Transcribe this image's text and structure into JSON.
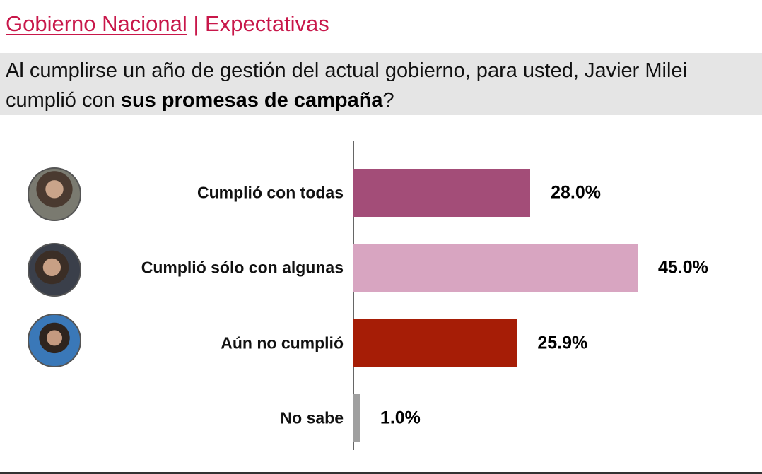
{
  "header": {
    "title_main": "Gobierno Nacional",
    "separator": " | ",
    "title_sub": "Expectativas"
  },
  "question": {
    "part1": "Al cumplirse un año de gestión del actual gobierno, para usted, Javier Milei cumplió con ",
    "bold": "sus promesas de campaña",
    "part2": "?"
  },
  "chart_data": {
    "type": "bar",
    "orientation": "horizontal",
    "categories": [
      "Cumplió con todas",
      "Cumplió sólo con algunas",
      "Aún no cumplió",
      "No sabe"
    ],
    "values": [
      28.0,
      45.0,
      25.9,
      1.0
    ],
    "value_labels": [
      "28.0%",
      "45.0%",
      "25.9%",
      "1.0%"
    ],
    "colors": [
      "#a34d78",
      "#d8a5c1",
      "#a61d06",
      "#a0a0a0"
    ],
    "xlim": [
      0,
      45
    ],
    "grid": false
  }
}
